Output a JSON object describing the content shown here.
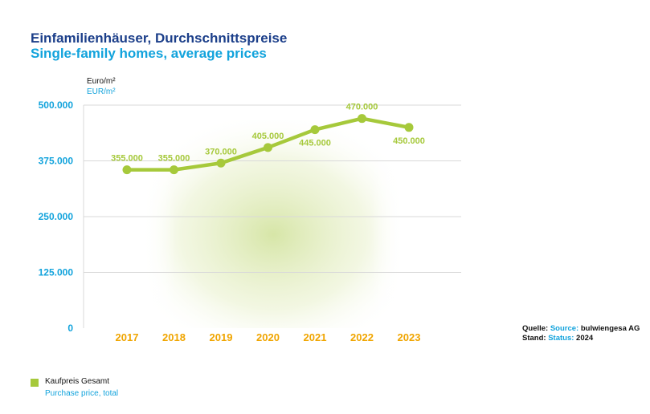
{
  "title_de": "Einfamilienhäuser, Durchschnittspreise",
  "title_en": "Single-family homes, average prices",
  "unit_de": "Euro/m²",
  "unit_en": "EUR/m²",
  "source": {
    "label_de": "Quelle:",
    "label_en": "Source:",
    "value": "bulwiengesa AG",
    "status_label_de": "Stand:",
    "status_label_en": "Status:",
    "status_value": "2024"
  },
  "legend": {
    "label_de": "Kaufpreis Gesamt",
    "label_en": "Purchase price, total"
  },
  "colors": {
    "line": "#a6c93b",
    "year_labels": "#f0a500",
    "y_labels": "#12a3dc",
    "title_de": "#1c3f8a",
    "title_en": "#12a3dc"
  },
  "chart_data": {
    "type": "line",
    "categories": [
      "2017",
      "2018",
      "2019",
      "2020",
      "2021",
      "2022",
      "2023"
    ],
    "values": [
      355000,
      355000,
      370000,
      405000,
      445000,
      470000,
      450000
    ],
    "data_labels": [
      "355.000",
      "355.000",
      "370.000",
      "405.000",
      "445.000",
      "470.000",
      "450.000"
    ],
    "y_ticks": [
      0,
      125000,
      250000,
      375000,
      500000
    ],
    "y_tick_labels": [
      "0",
      "125.000",
      "250.000",
      "375.000",
      "500.000"
    ],
    "ylim": [
      0,
      500000
    ],
    "grid": true
  }
}
